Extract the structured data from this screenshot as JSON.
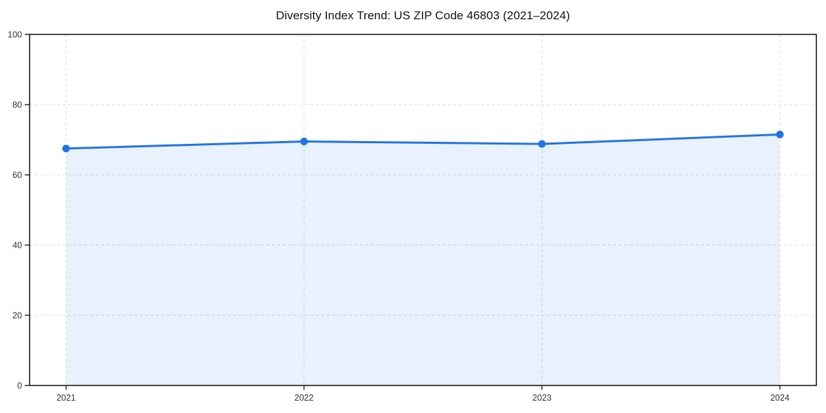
{
  "chart_data": {
    "type": "area",
    "title": "Diversity Index Trend: US ZIP Code 46803 (2021–2024)",
    "categories": [
      "2021",
      "2022",
      "2023",
      "2024"
    ],
    "values": [
      67.5,
      69.5,
      68.8,
      71.5
    ],
    "xlabel": "",
    "ylabel": "",
    "ylim": [
      0,
      100
    ],
    "yticks": [
      0,
      20,
      40,
      60,
      80,
      100
    ],
    "grid": "dashed-both-directions",
    "legend": "none",
    "marker": "circle",
    "colors": {
      "line": "#2273e6",
      "marker": "#2273e6",
      "fill": "rgba(34,115,230,0.10)",
      "grid": "#e1e1e1",
      "axis": "#1a1a1a",
      "tick_label": "#333333",
      "title": "#111111"
    }
  }
}
